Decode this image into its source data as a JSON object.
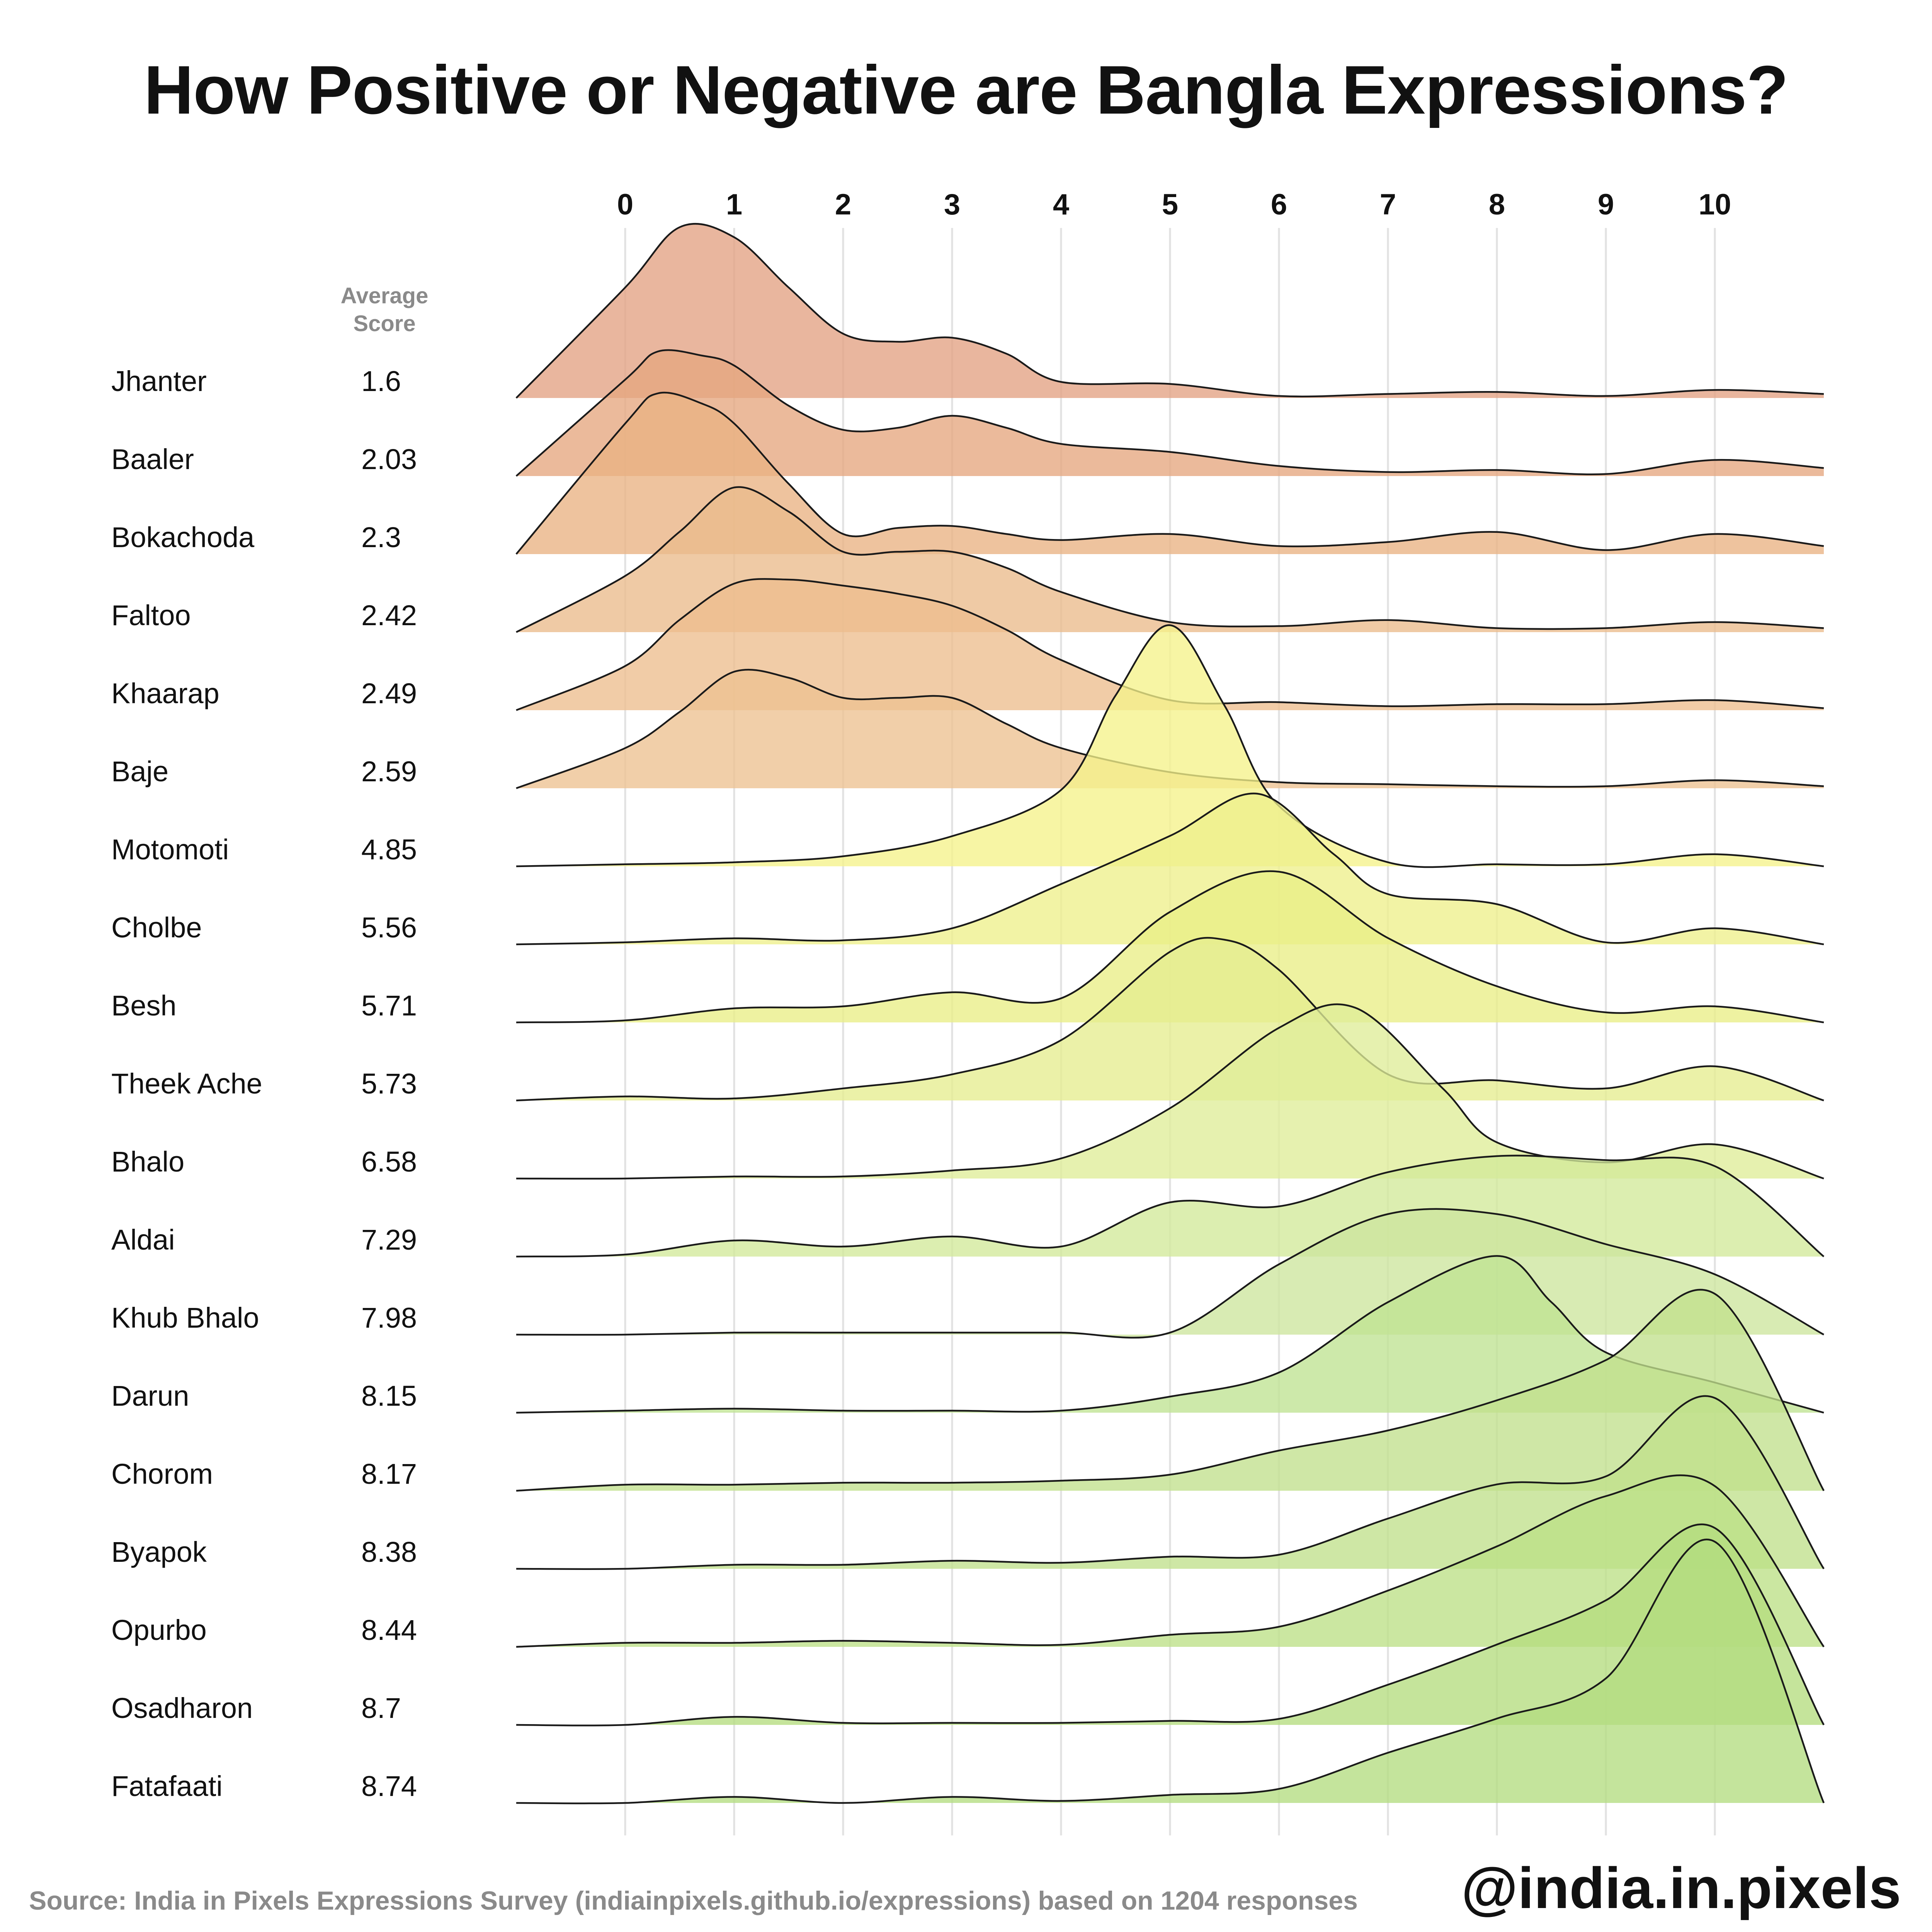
{
  "title": "How Positive or Negative are Bangla Expressions?",
  "source": "Source: India in Pixels Expressions Survey (indiainpixels.github.io/expressions) based on 1204 responses",
  "handle": "@india.in.pixels",
  "chart_data": {
    "type": "ridgeline",
    "x_ticks": [
      0,
      1,
      2,
      3,
      4,
      5,
      6,
      7,
      8,
      9,
      10
    ],
    "xlim": [
      -1,
      11
    ],
    "average_label": [
      "Average",
      "Score"
    ],
    "grid": true,
    "series": [
      {
        "name": "Jhanter",
        "average": "1.6",
        "color": "#e3a283",
        "density": [
          [
            -1,
            0
          ],
          [
            0,
            0.55
          ],
          [
            0.5,
            0.85
          ],
          [
            1,
            0.8
          ],
          [
            1.5,
            0.55
          ],
          [
            2,
            0.32
          ],
          [
            2.5,
            0.28
          ],
          [
            3,
            0.3
          ],
          [
            3.5,
            0.22
          ],
          [
            4,
            0.08
          ],
          [
            5,
            0.07
          ],
          [
            6,
            0.01
          ],
          [
            7,
            0.02
          ],
          [
            8,
            0.03
          ],
          [
            9,
            0.01
          ],
          [
            10,
            0.04
          ],
          [
            11,
            0.02
          ]
        ]
      },
      {
        "name": "Baaler",
        "average": "2.03",
        "color": "#e6a77f",
        "density": [
          [
            -1,
            0
          ],
          [
            0,
            0.48
          ],
          [
            0.3,
            0.62
          ],
          [
            0.7,
            0.6
          ],
          [
            1,
            0.55
          ],
          [
            1.5,
            0.35
          ],
          [
            2,
            0.23
          ],
          [
            2.5,
            0.24
          ],
          [
            3,
            0.3
          ],
          [
            3.5,
            0.24
          ],
          [
            4,
            0.16
          ],
          [
            5,
            0.12
          ],
          [
            6,
            0.05
          ],
          [
            7,
            0.02
          ],
          [
            8,
            0.03
          ],
          [
            9,
            0.01
          ],
          [
            10,
            0.08
          ],
          [
            11,
            0.04
          ]
        ]
      },
      {
        "name": "Bokachoda",
        "average": "2.3",
        "color": "#e9b283",
        "density": [
          [
            -1,
            0
          ],
          [
            0,
            0.65
          ],
          [
            0.3,
            0.8
          ],
          [
            0.7,
            0.75
          ],
          [
            1,
            0.65
          ],
          [
            1.5,
            0.35
          ],
          [
            2,
            0.1
          ],
          [
            2.5,
            0.13
          ],
          [
            3,
            0.14
          ],
          [
            3.5,
            0.1
          ],
          [
            4,
            0.07
          ],
          [
            5,
            0.1
          ],
          [
            6,
            0.04
          ],
          [
            7,
            0.06
          ],
          [
            8,
            0.11
          ],
          [
            9,
            0.02
          ],
          [
            10,
            0.1
          ],
          [
            11,
            0.04
          ]
        ]
      },
      {
        "name": "Faltoo",
        "average": "2.42",
        "color": "#ebbb8c",
        "density": [
          [
            -1,
            0
          ],
          [
            0,
            0.28
          ],
          [
            0.5,
            0.5
          ],
          [
            1,
            0.72
          ],
          [
            1.5,
            0.6
          ],
          [
            2,
            0.4
          ],
          [
            2.5,
            0.4
          ],
          [
            3,
            0.4
          ],
          [
            3.5,
            0.32
          ],
          [
            4,
            0.2
          ],
          [
            5,
            0.05
          ],
          [
            6,
            0.03
          ],
          [
            7,
            0.06
          ],
          [
            8,
            0.02
          ],
          [
            9,
            0.02
          ],
          [
            10,
            0.05
          ],
          [
            11,
            0.02
          ]
        ]
      },
      {
        "name": "Khaarap",
        "average": "2.49",
        "color": "#edbe8e",
        "density": [
          [
            -1,
            0
          ],
          [
            0,
            0.22
          ],
          [
            0.5,
            0.45
          ],
          [
            1,
            0.63
          ],
          [
            1.5,
            0.65
          ],
          [
            2,
            0.62
          ],
          [
            2.5,
            0.58
          ],
          [
            3,
            0.52
          ],
          [
            3.5,
            0.4
          ],
          [
            4,
            0.25
          ],
          [
            5,
            0.05
          ],
          [
            6,
            0.04
          ],
          [
            7,
            0.02
          ],
          [
            8,
            0.03
          ],
          [
            9,
            0.03
          ],
          [
            10,
            0.05
          ],
          [
            11,
            0.01
          ]
        ]
      },
      {
        "name": "Baje",
        "average": "2.59",
        "color": "#edc291",
        "density": [
          [
            -1,
            0
          ],
          [
            0,
            0.2
          ],
          [
            0.5,
            0.38
          ],
          [
            1,
            0.58
          ],
          [
            1.5,
            0.55
          ],
          [
            2,
            0.45
          ],
          [
            2.5,
            0.45
          ],
          [
            3,
            0.45
          ],
          [
            3.5,
            0.32
          ],
          [
            4,
            0.2
          ],
          [
            5,
            0.08
          ],
          [
            6,
            0.03
          ],
          [
            7,
            0.02
          ],
          [
            8,
            0.01
          ],
          [
            9,
            0.01
          ],
          [
            10,
            0.04
          ],
          [
            11,
            0.01
          ]
        ]
      },
      {
        "name": "Motomoti",
        "average": "4.85",
        "color": "#f5f28b",
        "density": [
          [
            -1,
            0
          ],
          [
            0,
            0.01
          ],
          [
            1,
            0.02
          ],
          [
            2,
            0.05
          ],
          [
            3,
            0.15
          ],
          [
            4,
            0.38
          ],
          [
            4.5,
            0.85
          ],
          [
            5,
            1.2
          ],
          [
            5.5,
            0.8
          ],
          [
            6,
            0.3
          ],
          [
            7,
            0.02
          ],
          [
            8,
            0.01
          ],
          [
            9,
            0.01
          ],
          [
            10,
            0.06
          ],
          [
            11,
            0
          ]
        ]
      },
      {
        "name": "Cholbe",
        "average": "5.56",
        "color": "#eef08c",
        "density": [
          [
            -1,
            0
          ],
          [
            0,
            0.01
          ],
          [
            1,
            0.03
          ],
          [
            2,
            0.02
          ],
          [
            3,
            0.08
          ],
          [
            4,
            0.3
          ],
          [
            5,
            0.54
          ],
          [
            5.8,
            0.75
          ],
          [
            6.5,
            0.45
          ],
          [
            7,
            0.25
          ],
          [
            8,
            0.2
          ],
          [
            9,
            0.01
          ],
          [
            10,
            0.08
          ],
          [
            11,
            0
          ]
        ]
      },
      {
        "name": "Besh",
        "average": "5.71",
        "color": "#e9ee87",
        "density": [
          [
            -1,
            0
          ],
          [
            0,
            0.01
          ],
          [
            1,
            0.07
          ],
          [
            2,
            0.08
          ],
          [
            3,
            0.15
          ],
          [
            4,
            0.12
          ],
          [
            5,
            0.55
          ],
          [
            6,
            0.75
          ],
          [
            7,
            0.42
          ],
          [
            8,
            0.18
          ],
          [
            9,
            0.05
          ],
          [
            10,
            0.08
          ],
          [
            11,
            0
          ]
        ]
      },
      {
        "name": "Theek Ache",
        "average": "5.73",
        "color": "#e6ed8f",
        "density": [
          [
            -1,
            0
          ],
          [
            0,
            0.02
          ],
          [
            1,
            0.01
          ],
          [
            2,
            0.06
          ],
          [
            3,
            0.13
          ],
          [
            4,
            0.3
          ],
          [
            5,
            0.74
          ],
          [
            5.5,
            0.8
          ],
          [
            6,
            0.65
          ],
          [
            7,
            0.13
          ],
          [
            8,
            0.1
          ],
          [
            9,
            0.06
          ],
          [
            10,
            0.17
          ],
          [
            11,
            0
          ]
        ]
      },
      {
        "name": "Bhalo",
        "average": "6.58",
        "color": "#dfed99",
        "density": [
          [
            -1,
            0
          ],
          [
            0,
            0
          ],
          [
            1,
            0.01
          ],
          [
            2,
            0.01
          ],
          [
            3,
            0.04
          ],
          [
            4,
            0.1
          ],
          [
            5,
            0.35
          ],
          [
            6,
            0.75
          ],
          [
            6.7,
            0.85
          ],
          [
            7.5,
            0.45
          ],
          [
            8,
            0.18
          ],
          [
            9,
            0.08
          ],
          [
            10,
            0.17
          ],
          [
            11,
            0
          ]
        ]
      },
      {
        "name": "Aldai",
        "average": "7.29",
        "color": "#d2e99a",
        "density": [
          [
            -1,
            0
          ],
          [
            0,
            0.01
          ],
          [
            1,
            0.08
          ],
          [
            2,
            0.05
          ],
          [
            3,
            0.1
          ],
          [
            4,
            0.05
          ],
          [
            5,
            0.27
          ],
          [
            6,
            0.25
          ],
          [
            7,
            0.42
          ],
          [
            8,
            0.5
          ],
          [
            9,
            0.48
          ],
          [
            10,
            0.45
          ],
          [
            11,
            0
          ]
        ]
      },
      {
        "name": "Khub Bhalo",
        "average": "7.98",
        "color": "#cde69e",
        "density": [
          [
            -1,
            0
          ],
          [
            0,
            0
          ],
          [
            1,
            0.01
          ],
          [
            2,
            0.01
          ],
          [
            3,
            0.01
          ],
          [
            4,
            0.01
          ],
          [
            5,
            0.01
          ],
          [
            6,
            0.35
          ],
          [
            7,
            0.6
          ],
          [
            8,
            0.6
          ],
          [
            9,
            0.45
          ],
          [
            10,
            0.3
          ],
          [
            11,
            0
          ]
        ]
      },
      {
        "name": "Darun",
        "average": "8.15",
        "color": "#bfe392",
        "density": [
          [
            -1,
            0
          ],
          [
            0,
            0.01
          ],
          [
            1,
            0.02
          ],
          [
            2,
            0.01
          ],
          [
            3,
            0.01
          ],
          [
            4,
            0.01
          ],
          [
            5,
            0.08
          ],
          [
            6,
            0.2
          ],
          [
            7,
            0.55
          ],
          [
            8,
            0.78
          ],
          [
            8.5,
            0.55
          ],
          [
            9,
            0.3
          ],
          [
            10,
            0.15
          ],
          [
            11,
            0
          ]
        ]
      },
      {
        "name": "Chorom",
        "average": "8.17",
        "color": "#c2e08d",
        "density": [
          [
            -1,
            0
          ],
          [
            0,
            0.03
          ],
          [
            1,
            0.03
          ],
          [
            2,
            0.04
          ],
          [
            3,
            0.04
          ],
          [
            4,
            0.05
          ],
          [
            5,
            0.08
          ],
          [
            6,
            0.2
          ],
          [
            7,
            0.3
          ],
          [
            8,
            0.45
          ],
          [
            9,
            0.65
          ],
          [
            10,
            0.98
          ],
          [
            11,
            0
          ]
        ]
      },
      {
        "name": "Byapok",
        "average": "8.38",
        "color": "#c0e08c",
        "density": [
          [
            -1,
            0
          ],
          [
            0,
            0
          ],
          [
            1,
            0.02
          ],
          [
            2,
            0.02
          ],
          [
            3,
            0.04
          ],
          [
            4,
            0.03
          ],
          [
            5,
            0.06
          ],
          [
            6,
            0.07
          ],
          [
            7,
            0.25
          ],
          [
            8,
            0.42
          ],
          [
            9,
            0.46
          ],
          [
            10,
            0.85
          ],
          [
            11,
            0
          ]
        ]
      },
      {
        "name": "Opurbo",
        "average": "8.44",
        "color": "#bde086",
        "density": [
          [
            -1,
            0
          ],
          [
            0,
            0.02
          ],
          [
            1,
            0.02
          ],
          [
            2,
            0.03
          ],
          [
            3,
            0.02
          ],
          [
            4,
            0.01
          ],
          [
            5,
            0.06
          ],
          [
            6,
            0.1
          ],
          [
            7,
            0.28
          ],
          [
            8,
            0.5
          ],
          [
            9,
            0.75
          ],
          [
            10,
            0.8
          ],
          [
            11,
            0
          ]
        ]
      },
      {
        "name": "Osadharon",
        "average": "8.7",
        "color": "#b5dd7f",
        "density": [
          [
            -1,
            0
          ],
          [
            0,
            0
          ],
          [
            1,
            0.04
          ],
          [
            2,
            0.01
          ],
          [
            3,
            0.01
          ],
          [
            4,
            0.01
          ],
          [
            5,
            0.02
          ],
          [
            6,
            0.03
          ],
          [
            7,
            0.2
          ],
          [
            8,
            0.4
          ],
          [
            9,
            0.62
          ],
          [
            10,
            0.98
          ],
          [
            11,
            0
          ]
        ]
      },
      {
        "name": "Fatafaati",
        "average": "8.74",
        "color": "#b3dc80",
        "density": [
          [
            -1,
            0
          ],
          [
            0,
            0
          ],
          [
            1,
            0.03
          ],
          [
            2,
            0
          ],
          [
            3,
            0.03
          ],
          [
            4,
            0.01
          ],
          [
            5,
            0.04
          ],
          [
            6,
            0.07
          ],
          [
            7,
            0.25
          ],
          [
            8,
            0.42
          ],
          [
            9,
            0.62
          ],
          [
            10,
            1.3
          ],
          [
            11,
            0
          ]
        ]
      }
    ]
  }
}
